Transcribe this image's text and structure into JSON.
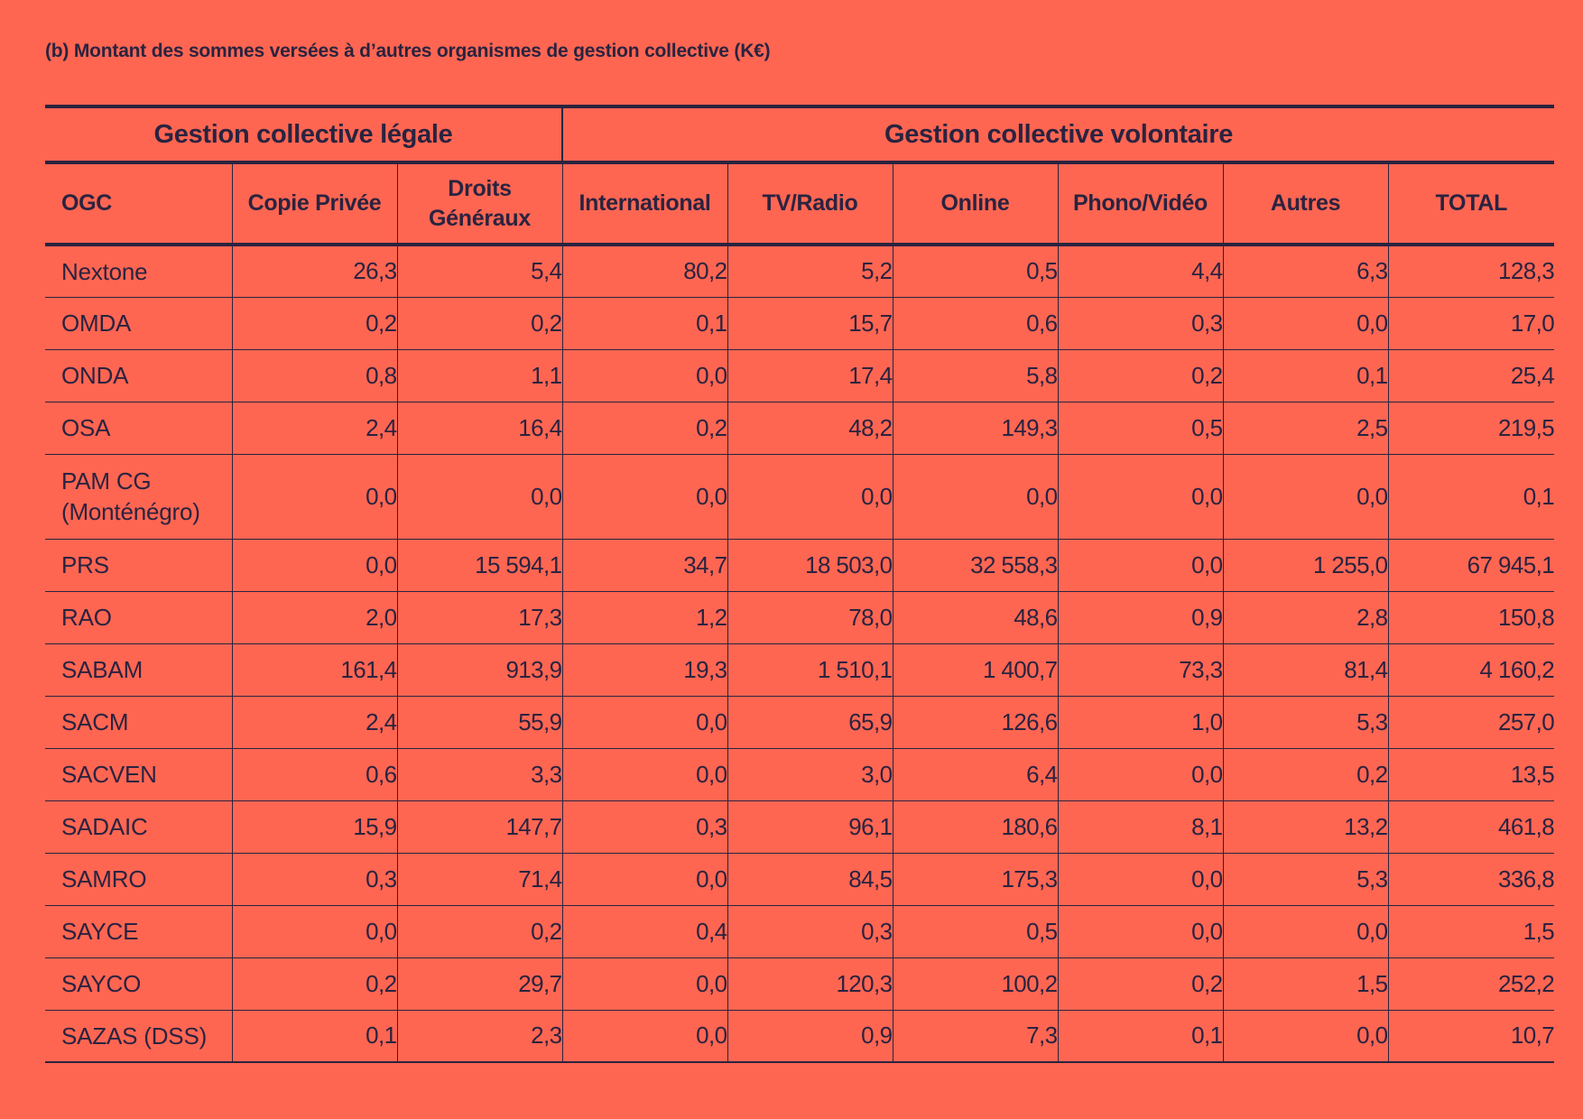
{
  "caption": "(b) Montant des sommes versées à d’autres organismes de gestion collective (K€)",
  "groups": {
    "legal": "Gestion collective légale",
    "volontaire": "Gestion collective volontaire"
  },
  "columns": {
    "ogc": "OGC",
    "copie_privee": "Copie Privée",
    "droits_generaux_1": "Droits",
    "droits_generaux_2": "Généraux",
    "international": "International",
    "tv_radio": "TV/Radio",
    "online": "Online",
    "phono_video": "Phono/Vidéo",
    "autres": "Autres",
    "total": "TOTAL"
  },
  "rows": [
    {
      "ogc": "Nextone",
      "ogc2": "",
      "copie_privee": "26,3",
      "droits_generaux": "5,4",
      "international": "80,2",
      "tv_radio": "5,2",
      "online": "0,5",
      "phono_video": "4,4",
      "autres": "6,3",
      "total": "128,3"
    },
    {
      "ogc": "OMDA",
      "ogc2": "",
      "copie_privee": "0,2",
      "droits_generaux": "0,2",
      "international": "0,1",
      "tv_radio": "15,7",
      "online": "0,6",
      "phono_video": "0,3",
      "autres": "0,0",
      "total": "17,0"
    },
    {
      "ogc": "ONDA",
      "ogc2": "",
      "copie_privee": "0,8",
      "droits_generaux": "1,1",
      "international": "0,0",
      "tv_radio": "17,4",
      "online": "5,8",
      "phono_video": "0,2",
      "autres": "0,1",
      "total": "25,4"
    },
    {
      "ogc": "OSA",
      "ogc2": "",
      "copie_privee": "2,4",
      "droits_generaux": "16,4",
      "international": "0,2",
      "tv_radio": "48,2",
      "online": "149,3",
      "phono_video": "0,5",
      "autres": "2,5",
      "total": "219,5"
    },
    {
      "ogc": "PAM CG",
      "ogc2": "(Monténégro)",
      "copie_privee": "0,0",
      "droits_generaux": "0,0",
      "international": "0,0",
      "tv_radio": "0,0",
      "online": "0,0",
      "phono_video": "0,0",
      "autres": "0,0",
      "total": "0,1"
    },
    {
      "ogc": "PRS",
      "ogc2": "",
      "copie_privee": "0,0",
      "droits_generaux": "15 594,1",
      "international": "34,7",
      "tv_radio": "18 503,0",
      "online": "32 558,3",
      "phono_video": "0,0",
      "autres": "1 255,0",
      "total": "67 945,1"
    },
    {
      "ogc": "RAO",
      "ogc2": "",
      "copie_privee": "2,0",
      "droits_generaux": "17,3",
      "international": "1,2",
      "tv_radio": "78,0",
      "online": "48,6",
      "phono_video": "0,9",
      "autres": "2,8",
      "total": "150,8"
    },
    {
      "ogc": "SABAM",
      "ogc2": "",
      "copie_privee": "161,4",
      "droits_generaux": "913,9",
      "international": "19,3",
      "tv_radio": "1 510,1",
      "online": "1 400,7",
      "phono_video": "73,3",
      "autres": "81,4",
      "total": "4 160,2"
    },
    {
      "ogc": "SACM",
      "ogc2": "",
      "copie_privee": "2,4",
      "droits_generaux": "55,9",
      "international": "0,0",
      "tv_radio": "65,9",
      "online": "126,6",
      "phono_video": "1,0",
      "autres": "5,3",
      "total": "257,0"
    },
    {
      "ogc": "SACVEN",
      "ogc2": "",
      "copie_privee": "0,6",
      "droits_generaux": "3,3",
      "international": "0,0",
      "tv_radio": "3,0",
      "online": "6,4",
      "phono_video": "0,0",
      "autres": "0,2",
      "total": "13,5"
    },
    {
      "ogc": "SADAIC",
      "ogc2": "",
      "copie_privee": "15,9",
      "droits_generaux": "147,7",
      "international": "0,3",
      "tv_radio": "96,1",
      "online": "180,6",
      "phono_video": "8,1",
      "autres": "13,2",
      "total": "461,8"
    },
    {
      "ogc": "SAMRO",
      "ogc2": "",
      "copie_privee": "0,3",
      "droits_generaux": "71,4",
      "international": "0,0",
      "tv_radio": "84,5",
      "online": "175,3",
      "phono_video": "0,0",
      "autres": "5,3",
      "total": "336,8"
    },
    {
      "ogc": "SAYCE",
      "ogc2": "",
      "copie_privee": "0,0",
      "droits_generaux": "0,2",
      "international": "0,4",
      "tv_radio": "0,3",
      "online": "0,5",
      "phono_video": "0,0",
      "autres": "0,0",
      "total": "1,5"
    },
    {
      "ogc": "SAYCO",
      "ogc2": "",
      "copie_privee": "0,2",
      "droits_generaux": "29,7",
      "international": "0,0",
      "tv_radio": "120,3",
      "online": "100,2",
      "phono_video": "0,2",
      "autres": "1,5",
      "total": "252,2"
    },
    {
      "ogc": "SAZAS (DSS)",
      "ogc2": "",
      "copie_privee": "0,1",
      "droits_generaux": "2,3",
      "international": "0,0",
      "tv_radio": "0,9",
      "online": "7,3",
      "phono_video": "0,1",
      "autres": "0,0",
      "total": "10,7"
    }
  ],
  "colors": {
    "background": "#ff6652",
    "ink": "#2a2340"
  }
}
